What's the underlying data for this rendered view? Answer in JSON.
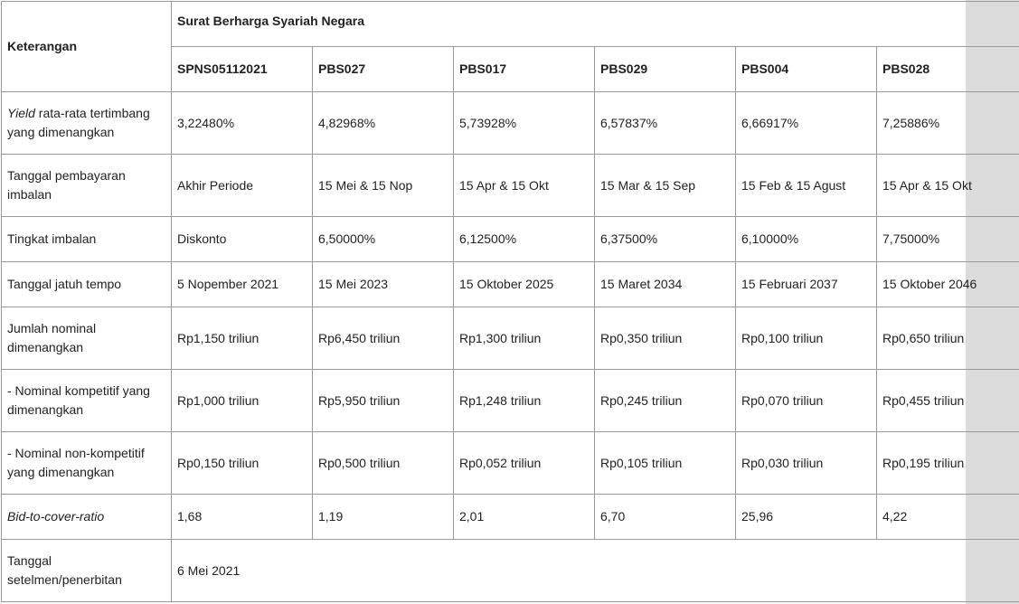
{
  "table": {
    "keterangan_header": "Keterangan",
    "group_header": "Surat Berharga Syariah Negara",
    "series": [
      "SPNS05112021",
      "PBS027",
      "PBS017",
      "PBS029",
      "PBS004",
      "PBS028"
    ],
    "rows": [
      {
        "label_italic": "Yield",
        "label": " rata-rata tertimbang yang dimenangkan",
        "values": [
          "3,22480%",
          "4,82968%",
          "5,73928%",
          "6,57837%",
          "6,66917%",
          "7,25886%"
        ]
      },
      {
        "label": "Tanggal pembayaran imbalan",
        "values": [
          "Akhir Periode",
          "15 Mei & 15 Nop",
          "15 Apr & 15 Okt",
          "15 Mar & 15 Sep",
          "15 Feb & 15 Agust",
          "15 Apr & 15 Okt"
        ]
      },
      {
        "label": "Tingkat imbalan",
        "values": [
          "Diskonto",
          "6,50000%",
          "6,12500%",
          "6,37500%",
          "6,10000%",
          "7,75000%"
        ]
      },
      {
        "label": "Tanggal jatuh tempo",
        "values": [
          "5 Nopember 2021",
          "15 Mei 2023",
          "15 Oktober 2025",
          "15 Maret 2034",
          "15 Februari 2037",
          "15 Oktober 2046"
        ]
      },
      {
        "label": "Jumlah nominal dimenangkan",
        "values": [
          "Rp1,150 triliun",
          "Rp6,450 triliun",
          "Rp1,300 triliun",
          "Rp0,350 triliun",
          "Rp0,100 triliun",
          "Rp0,650 triliun"
        ]
      },
      {
        "label": "- Nominal kompetitif yang dimenangkan",
        "values": [
          "Rp1,000 triliun",
          "Rp5,950 triliun",
          "Rp1,248 triliun",
          "Rp0,245 triliun",
          "Rp0,070 triliun",
          "Rp0,455 triliun"
        ]
      },
      {
        "label": "- Nominal non-kompetitif yang dimenangkan",
        "values": [
          "Rp0,150 triliun",
          "Rp0,500 triliun",
          "Rp0,052 triliun",
          "Rp0,105 triliun",
          "Rp0,030 triliun",
          "Rp0,195 triliun"
        ]
      },
      {
        "label_italic": "Bid-to-cover-ratio",
        "label": "",
        "values": [
          "1,68",
          "1,19",
          "2,01",
          "6,70",
          "25,96",
          "4,22"
        ]
      }
    ],
    "settlement": {
      "label": "Tanggal setelmen/penerbitan",
      "value": "6 Mei 2021"
    }
  },
  "colors": {
    "border": "#9a9a9a",
    "scrollbar": "#dcdcdc",
    "text": "#222222"
  }
}
